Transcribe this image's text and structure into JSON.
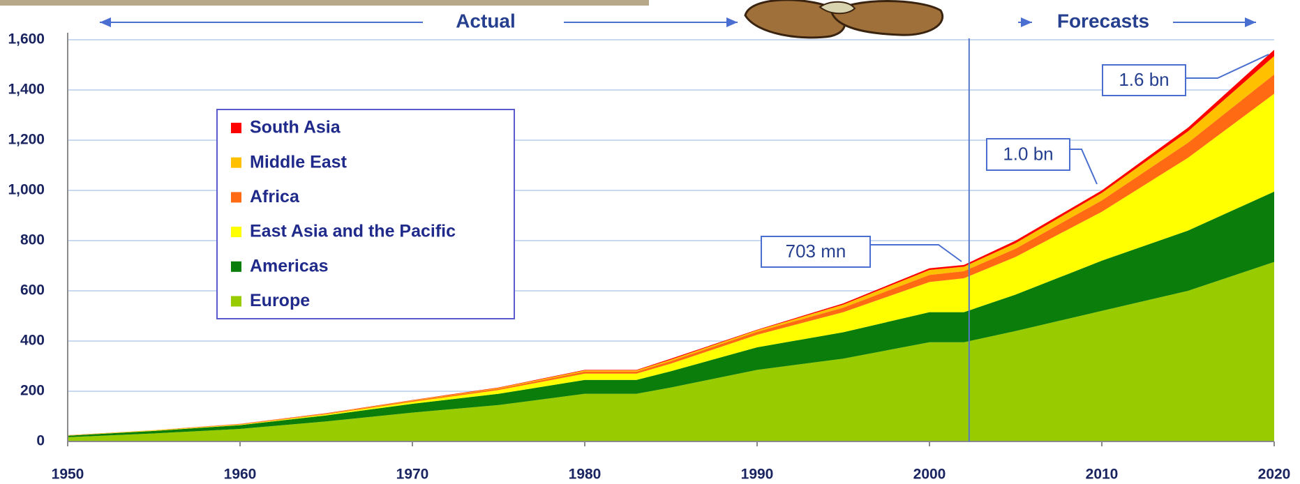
{
  "chart_data": {
    "type": "stacked_area",
    "x": [
      1950,
      1955,
      1960,
      1965,
      1970,
      1975,
      1980,
      1983,
      1985,
      1990,
      1995,
      2000,
      2002,
      2005,
      2010,
      2015,
      2020
    ],
    "series": [
      {
        "name": "Europe",
        "color": "#99cc00",
        "values": [
          17,
          32,
          50,
          80,
          115,
          145,
          190,
          190,
          215,
          285,
          330,
          395,
          395,
          440,
          520,
          600,
          715
        ]
      },
      {
        "name": "Americas",
        "color": "#0a7d0a",
        "values": [
          6,
          10,
          15,
          24,
          35,
          45,
          55,
          55,
          65,
          90,
          105,
          120,
          120,
          145,
          200,
          240,
          280
        ]
      },
      {
        "name": "East Asia and the Pacific",
        "color": "#ffff00",
        "values": [
          1,
          1.5,
          2,
          4,
          8,
          15,
          25,
          25,
          30,
          50,
          80,
          120,
          135,
          150,
          195,
          290,
          390
        ]
      },
      {
        "name": "Africa",
        "color": "#ff6a13",
        "values": [
          0.5,
          1,
          1.5,
          2.5,
          4,
          5,
          8,
          8,
          10,
          12,
          18,
          28,
          28,
          33,
          45,
          60,
          77
        ]
      },
      {
        "name": "Middle East",
        "color": "#ffc000",
        "values": [
          0.3,
          0.6,
          1,
          1.5,
          2,
          3,
          5,
          5,
          6,
          6,
          12,
          20,
          18,
          22,
          30,
          45,
          73
        ]
      },
      {
        "name": "South Asia",
        "color": "#ff0000",
        "values": [
          0.2,
          0.3,
          0.5,
          0.8,
          1,
          2,
          2,
          2,
          4,
          2,
          5,
          7,
          7,
          10,
          10,
          15,
          25
        ]
      }
    ],
    "xlim": [
      1950,
      2020
    ],
    "xticks": [
      1950,
      1960,
      1970,
      1980,
      1990,
      2000,
      2010,
      2020
    ],
    "ylim": [
      0,
      1600
    ],
    "yticks": [
      0,
      200,
      400,
      600,
      800,
      {
        "value": 1000,
        "label": "1,000"
      },
      {
        "value": 1200,
        "label": "1,200"
      },
      {
        "value": 1400,
        "label": "1,400"
      },
      {
        "value": 1600,
        "label": "1,600"
      }
    ],
    "grid": true,
    "legend": "upper left",
    "divider_x": 2002.3,
    "period_labels": [
      "Actual",
      "Forecasts"
    ],
    "annotations": [
      "703 mn",
      "1.0 bn",
      "1.6 bn"
    ]
  }
}
